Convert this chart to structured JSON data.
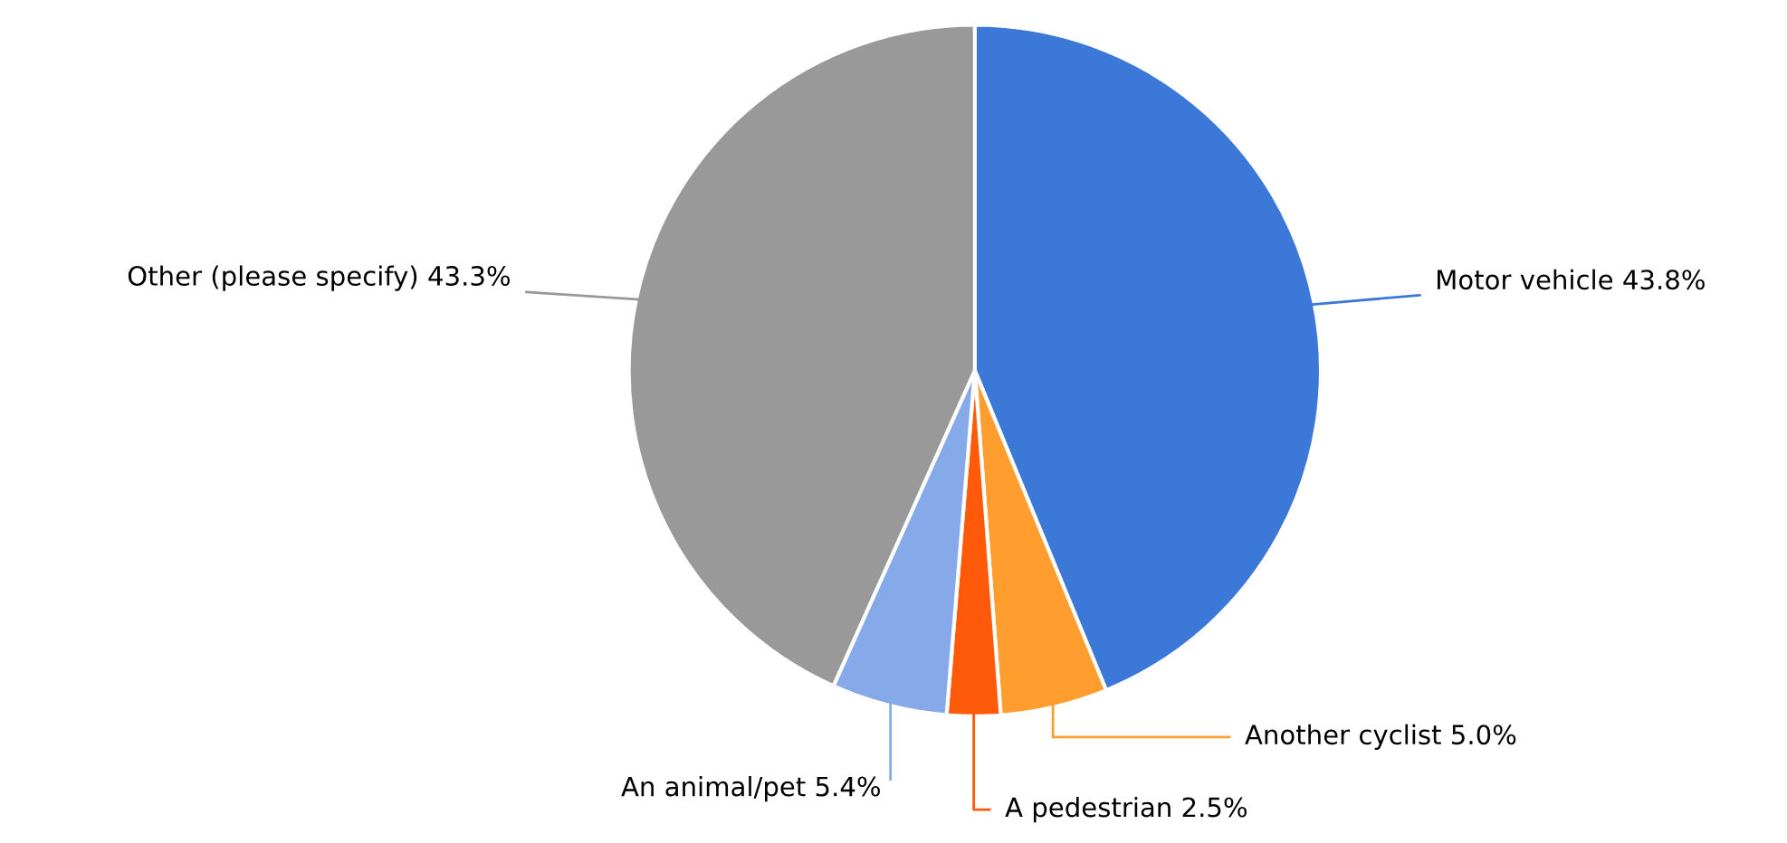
{
  "chart_data": {
    "type": "pie",
    "categories": [
      "Motor vehicle",
      "Another cyclist",
      "A pedestrian",
      "An animal/pet",
      "Other (please specify)"
    ],
    "values": [
      43.8,
      5.0,
      2.5,
      5.4,
      43.3
    ],
    "colors": [
      "#3c78d8",
      "#ff9d2e",
      "#ff5a0a",
      "#86a9ea",
      "#999999"
    ],
    "value_labels": [
      "43.8%",
      "5.0%",
      "2.5%",
      "5.4%",
      "43.3%"
    ],
    "legend": false
  }
}
